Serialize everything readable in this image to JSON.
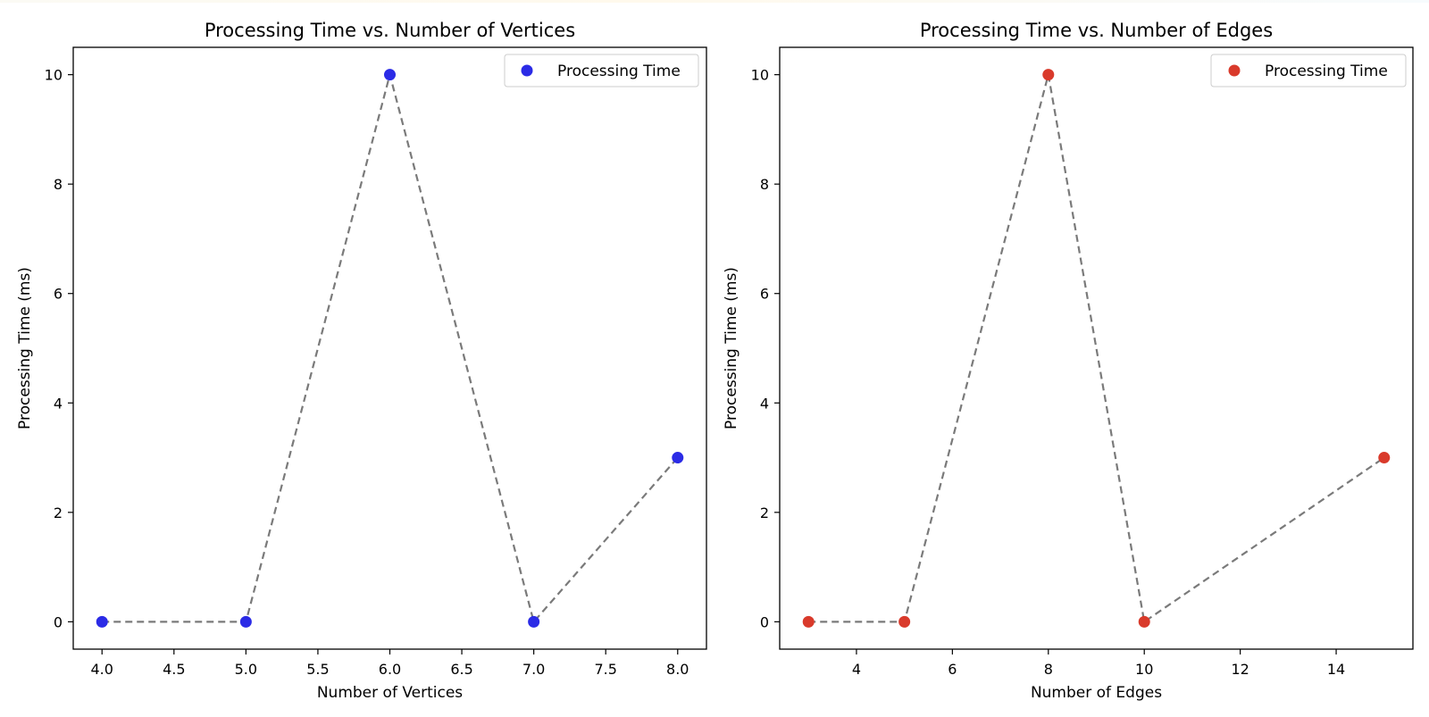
{
  "chart_data": [
    {
      "type": "scatter",
      "title": "Processing Time vs. Number of Vertices",
      "xlabel": "Number of Vertices",
      "ylabel": "Processing Time (ms)",
      "x": [
        4,
        5,
        6,
        7,
        8
      ],
      "series": [
        {
          "name": "Processing Time",
          "values": [
            0,
            0,
            10,
            0,
            3
          ],
          "color": "#2b2be6"
        }
      ],
      "connector": {
        "style": "dashed",
        "color": "#7a7a7a"
      },
      "xlim": [
        3.8,
        8.2
      ],
      "ylim": [
        -0.5,
        10.5
      ],
      "xticks": [
        4.0,
        4.5,
        5.0,
        5.5,
        6.0,
        6.5,
        7.0,
        7.5,
        8.0
      ],
      "xtick_labels": [
        "4.0",
        "4.5",
        "5.0",
        "5.5",
        "6.0",
        "6.5",
        "7.0",
        "7.5",
        "8.0"
      ],
      "yticks": [
        0,
        2,
        4,
        6,
        8,
        10
      ],
      "ytick_labels": [
        "0",
        "2",
        "4",
        "6",
        "8",
        "10"
      ],
      "legend": "top-right",
      "grid": false
    },
    {
      "type": "scatter",
      "title": "Processing Time vs. Number of Edges",
      "xlabel": "Number of Edges",
      "ylabel": "Processing Time (ms)",
      "x": [
        3,
        5,
        8,
        10,
        15
      ],
      "series": [
        {
          "name": "Processing Time",
          "values": [
            0,
            0,
            10,
            0,
            3
          ],
          "color": "#d93a2b"
        }
      ],
      "connector": {
        "style": "dashed",
        "color": "#7a7a7a"
      },
      "xlim": [
        2.4,
        15.6
      ],
      "ylim": [
        -0.5,
        10.5
      ],
      "xticks": [
        4,
        6,
        8,
        10,
        12,
        14
      ],
      "xtick_labels": [
        "4",
        "6",
        "8",
        "10",
        "12",
        "14"
      ],
      "yticks": [
        0,
        2,
        4,
        6,
        8,
        10
      ],
      "ytick_labels": [
        "0",
        "2",
        "4",
        "6",
        "8",
        "10"
      ],
      "legend": "top-right",
      "grid": false
    }
  ]
}
